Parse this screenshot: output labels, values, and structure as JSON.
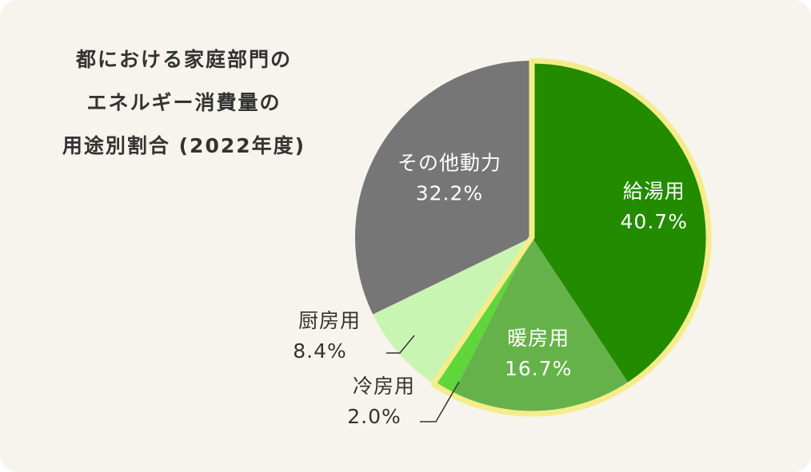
{
  "title_lines": [
    "都における家庭部門の",
    "エネルギー消費量の",
    "用途別割合 (2022年度)"
  ],
  "chart_data": {
    "type": "pie",
    "title": "都における家庭部門のエネルギー消費量の用途別割合 (2022年度)",
    "slices": [
      {
        "label": "給湯用",
        "value": 40.7,
        "display": "40.7%",
        "color": "#228b00",
        "highlighted": true,
        "label_placement": "inside",
        "label_color": "#ffffff"
      },
      {
        "label": "暖房用",
        "value": 16.7,
        "display": "16.7%",
        "color": "#66b24a",
        "highlighted": true,
        "label_placement": "inside",
        "label_color": "#ffffff"
      },
      {
        "label": "冷房用",
        "value": 2.0,
        "display": "2.0%",
        "color": "#5fd63a",
        "highlighted": true,
        "label_placement": "outside",
        "label_color": "#333333"
      },
      {
        "label": "厨房用",
        "value": 8.4,
        "display": "8.4%",
        "color": "#c9f5b3",
        "highlighted": false,
        "label_placement": "outside",
        "label_color": "#333333"
      },
      {
        "label": "その他動力",
        "value": 32.2,
        "display": "32.2%",
        "color": "#767676",
        "highlighted": false,
        "label_placement": "inside",
        "label_color": "#ffffff"
      }
    ],
    "highlight_color": "#f5ec8c"
  }
}
